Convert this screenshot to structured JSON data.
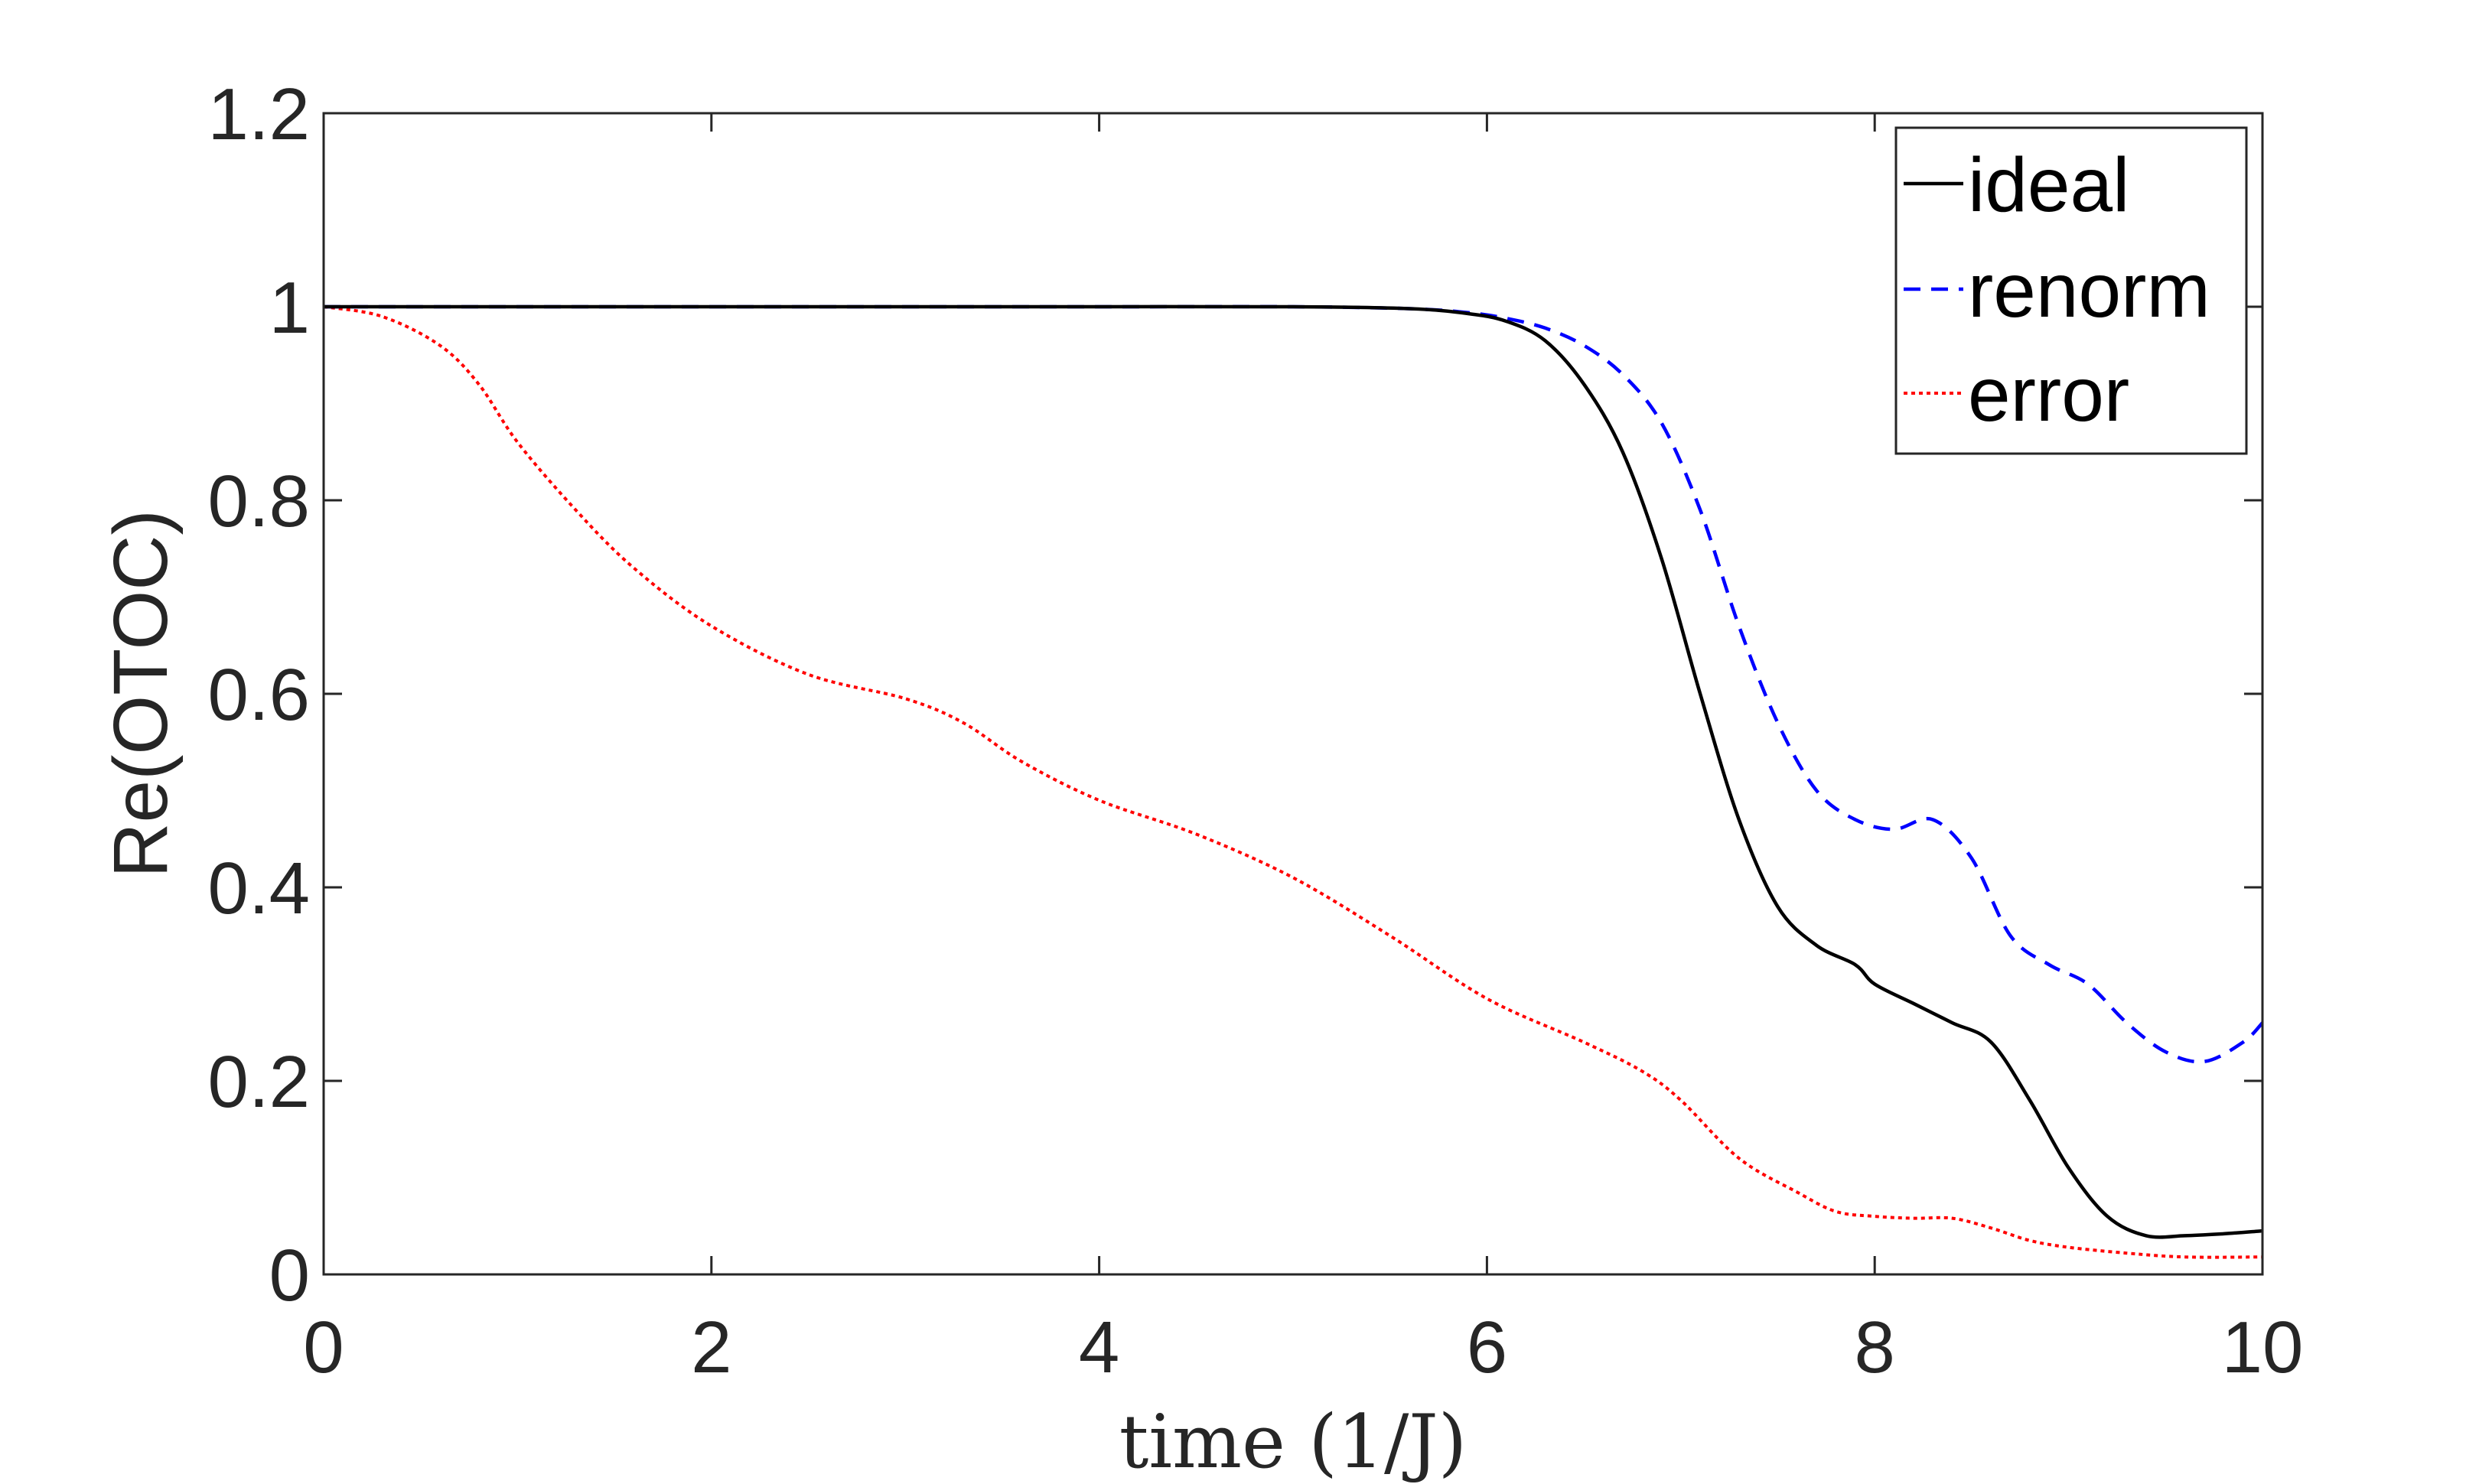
{
  "chart_data": {
    "type": "line",
    "title": "",
    "xlabel": "time (1/J)",
    "ylabel": "Re(OTOC)",
    "xlim": [
      0,
      10
    ],
    "ylim": [
      0,
      1.2
    ],
    "xticks": [
      0,
      2,
      4,
      6,
      8,
      10
    ],
    "xtick_labels": [
      "0",
      "2",
      "4",
      "6",
      "8",
      "10"
    ],
    "yticks": [
      0,
      0.2,
      0.4,
      0.6,
      0.8,
      1,
      1.2
    ],
    "ytick_labels": [
      "0",
      "0.2",
      "0.4",
      "0.6",
      "0.8",
      "1",
      "1.2"
    ],
    "grid": false,
    "legend_position": "top-right",
    "series": [
      {
        "name": "ideal",
        "color": "#000000",
        "style": "solid",
        "x": [
          0,
          1,
          2,
          3,
          4,
          5,
          5.6,
          5.9,
          6.1,
          6.3,
          6.5,
          6.7,
          6.9,
          7.1,
          7.3,
          7.5,
          7.7,
          7.9,
          8.0,
          8.2,
          8.4,
          8.6,
          8.8,
          9.0,
          9.2,
          9.4,
          9.6,
          9.8,
          10.0
        ],
        "y": [
          1.0,
          1.0,
          1.0,
          1.0,
          1.0,
          1.0,
          0.998,
          0.993,
          0.985,
          0.965,
          0.92,
          0.85,
          0.74,
          0.6,
          0.47,
          0.38,
          0.34,
          0.32,
          0.3,
          0.28,
          0.26,
          0.24,
          0.18,
          0.11,
          0.06,
          0.04,
          0.04,
          0.042,
          0.045
        ]
      },
      {
        "name": "renorm",
        "color": "#0000ff",
        "style": "dashed",
        "x": [
          0,
          1,
          2,
          3,
          4,
          5,
          5.6,
          5.9,
          6.1,
          6.3,
          6.5,
          6.7,
          6.9,
          7.1,
          7.3,
          7.5,
          7.7,
          7.9,
          8.1,
          8.3,
          8.5,
          8.7,
          8.9,
          9.1,
          9.3,
          9.5,
          9.7,
          9.9,
          10.0
        ],
        "y": [
          1.0,
          1.0,
          1.0,
          1.0,
          1.0,
          1.0,
          0.998,
          0.994,
          0.988,
          0.978,
          0.96,
          0.93,
          0.88,
          0.79,
          0.67,
          0.57,
          0.5,
          0.47,
          0.46,
          0.47,
          0.43,
          0.35,
          0.32,
          0.3,
          0.26,
          0.23,
          0.22,
          0.24,
          0.26
        ]
      },
      {
        "name": "error",
        "color": "#ff0000",
        "style": "dotted",
        "x": [
          0,
          0.3,
          0.6,
          0.8,
          1.0,
          1.3,
          1.6,
          2.0,
          2.5,
          3.0,
          3.3,
          3.6,
          4.0,
          4.5,
          5.0,
          5.5,
          6.0,
          6.5,
          6.8,
          7.0,
          7.3,
          7.6,
          7.8,
          8.0,
          8.2,
          8.4,
          8.6,
          8.8,
          9.0,
          9.3,
          9.6,
          10.0
        ],
        "y": [
          1.0,
          0.99,
          0.96,
          0.92,
          0.86,
          0.79,
          0.73,
          0.67,
          0.62,
          0.595,
          0.57,
          0.53,
          0.49,
          0.455,
          0.41,
          0.35,
          0.285,
          0.24,
          0.21,
          0.18,
          0.12,
          0.085,
          0.065,
          0.06,
          0.058,
          0.058,
          0.048,
          0.035,
          0.028,
          0.022,
          0.018,
          0.018
        ]
      }
    ]
  }
}
